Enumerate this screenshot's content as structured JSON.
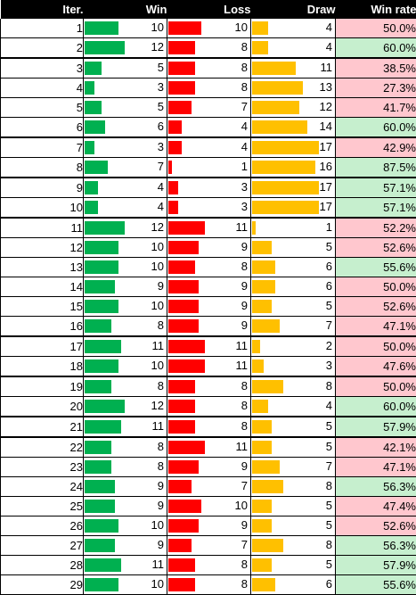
{
  "headers": {
    "iter": "Iter.",
    "win": "Win",
    "loss": "Loss",
    "draw": "Draw",
    "win_rate": "Win rate"
  },
  "colors": {
    "win_bar": "#00b050",
    "loss_bar": "#ff0000",
    "draw_bar": "#ffc000",
    "rate_high": "#c6efce",
    "rate_low": "#ffc7ce"
  },
  "rows": [
    {
      "iter": "1",
      "win": "10",
      "loss": "10",
      "draw": "4",
      "rate": "50.0%",
      "good": false,
      "thick": false
    },
    {
      "iter": "2",
      "win": "12",
      "loss": "8",
      "draw": "4",
      "rate": "60.0%",
      "good": true,
      "thick": true
    },
    {
      "iter": "3",
      "win": "5",
      "loss": "8",
      "draw": "11",
      "rate": "38.5%",
      "good": false,
      "thick": false
    },
    {
      "iter": "4",
      "win": "3",
      "loss": "8",
      "draw": "13",
      "rate": "27.3%",
      "good": false,
      "thick": false
    },
    {
      "iter": "5",
      "win": "5",
      "loss": "7",
      "draw": "12",
      "rate": "41.7%",
      "good": false,
      "thick": false
    },
    {
      "iter": "6",
      "win": "6",
      "loss": "4",
      "draw": "14",
      "rate": "60.0%",
      "good": true,
      "thick": true
    },
    {
      "iter": "7",
      "win": "3",
      "loss": "4",
      "draw": "17",
      "rate": "42.9%",
      "good": false,
      "thick": false
    },
    {
      "iter": "8",
      "win": "7",
      "loss": "1",
      "draw": "16",
      "rate": "87.5%",
      "good": true,
      "thick": true
    },
    {
      "iter": "9",
      "win": "4",
      "loss": "3",
      "draw": "17",
      "rate": "57.1%",
      "good": true,
      "thick": false
    },
    {
      "iter": "10",
      "win": "4",
      "loss": "3",
      "draw": "17",
      "rate": "57.1%",
      "good": true,
      "thick": true
    },
    {
      "iter": "11",
      "win": "12",
      "loss": "11",
      "draw": "1",
      "rate": "52.2%",
      "good": false,
      "thick": false
    },
    {
      "iter": "12",
      "win": "10",
      "loss": "9",
      "draw": "5",
      "rate": "52.6%",
      "good": false,
      "thick": false
    },
    {
      "iter": "13",
      "win": "10",
      "loss": "8",
      "draw": "6",
      "rate": "55.6%",
      "good": true,
      "thick": false
    },
    {
      "iter": "14",
      "win": "9",
      "loss": "9",
      "draw": "6",
      "rate": "50.0%",
      "good": false,
      "thick": false
    },
    {
      "iter": "15",
      "win": "10",
      "loss": "9",
      "draw": "5",
      "rate": "52.6%",
      "good": false,
      "thick": false
    },
    {
      "iter": "16",
      "win": "8",
      "loss": "9",
      "draw": "7",
      "rate": "47.1%",
      "good": false,
      "thick": true
    },
    {
      "iter": "17",
      "win": "11",
      "loss": "11",
      "draw": "2",
      "rate": "50.0%",
      "good": false,
      "thick": false
    },
    {
      "iter": "18",
      "win": "10",
      "loss": "11",
      "draw": "3",
      "rate": "47.6%",
      "good": false,
      "thick": true
    },
    {
      "iter": "19",
      "win": "8",
      "loss": "8",
      "draw": "8",
      "rate": "50.0%",
      "good": false,
      "thick": false
    },
    {
      "iter": "20",
      "win": "12",
      "loss": "8",
      "draw": "4",
      "rate": "60.0%",
      "good": true,
      "thick": true
    },
    {
      "iter": "21",
      "win": "11",
      "loss": "8",
      "draw": "5",
      "rate": "57.9%",
      "good": true,
      "thick": true
    },
    {
      "iter": "22",
      "win": "8",
      "loss": "11",
      "draw": "5",
      "rate": "42.1%",
      "good": false,
      "thick": false
    },
    {
      "iter": "23",
      "win": "8",
      "loss": "9",
      "draw": "7",
      "rate": "47.1%",
      "good": false,
      "thick": false
    },
    {
      "iter": "24",
      "win": "9",
      "loss": "7",
      "draw": "8",
      "rate": "56.3%",
      "good": true,
      "thick": false
    },
    {
      "iter": "25",
      "win": "9",
      "loss": "10",
      "draw": "5",
      "rate": "47.4%",
      "good": false,
      "thick": false
    },
    {
      "iter": "26",
      "win": "10",
      "loss": "9",
      "draw": "5",
      "rate": "52.6%",
      "good": false,
      "thick": false
    },
    {
      "iter": "27",
      "win": "9",
      "loss": "7",
      "draw": "8",
      "rate": "56.3%",
      "good": true,
      "thick": false
    },
    {
      "iter": "28",
      "win": "11",
      "loss": "8",
      "draw": "5",
      "rate": "57.9%",
      "good": true,
      "thick": false
    },
    {
      "iter": "29",
      "win": "10",
      "loss": "8",
      "draw": "6",
      "rate": "55.6%",
      "good": true,
      "thick": false
    }
  ]
}
